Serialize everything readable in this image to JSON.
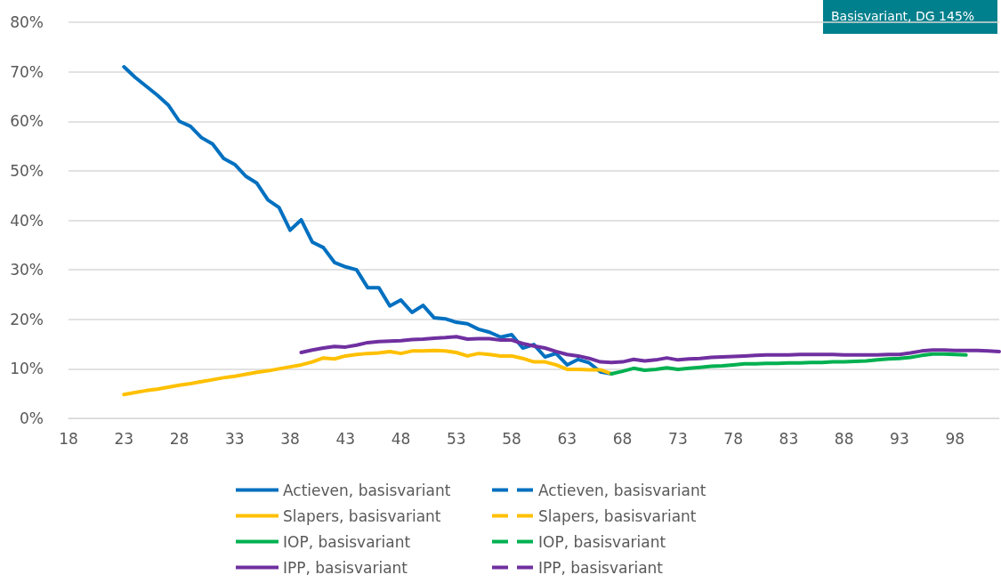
{
  "chart_data": {
    "type": "line",
    "annotations": [
      "Basisvariant, DG 145%"
    ],
    "xlim": [
      18,
      102
    ],
    "xticks": [
      18,
      23,
      28,
      33,
      38,
      43,
      48,
      53,
      58,
      63,
      68,
      73,
      78,
      83,
      88,
      93,
      98
    ],
    "ylim": [
      0,
      80
    ],
    "yticks": [
      {
        "value": 0,
        "label": "0%"
      },
      {
        "value": 10,
        "label": "10%"
      },
      {
        "value": 20,
        "label": "20%"
      },
      {
        "value": 30,
        "label": "30%"
      },
      {
        "value": 40,
        "label": "40%"
      },
      {
        "value": 50,
        "label": "50%"
      },
      {
        "value": 60,
        "label": "60%"
      },
      {
        "value": 70,
        "label": "70%"
      },
      {
        "value": 80,
        "label": "80%"
      }
    ],
    "grid": "y",
    "legend": "bottom",
    "marker": "none",
    "line_style": "solid",
    "series": [
      {
        "name": "Actieven, basisvariant",
        "color": "#0070c0",
        "x": [
          23,
          24,
          25,
          26,
          27,
          28,
          29,
          30,
          31,
          32,
          33,
          34,
          35,
          36,
          37,
          38,
          39,
          40,
          41,
          42,
          43,
          44,
          45,
          46,
          47,
          48,
          49,
          50,
          51,
          52,
          53,
          54,
          55,
          56,
          57,
          58,
          59,
          60,
          61,
          62,
          63,
          64,
          65,
          66,
          67
        ],
        "values": [
          71,
          68.9,
          67.1,
          65.3,
          63.3,
          60,
          59,
          56.7,
          55.4,
          52.5,
          51.3,
          48.9,
          47.5,
          44.1,
          42.6,
          38,
          40.1,
          35.6,
          34.5,
          31.5,
          30.6,
          30,
          26.4,
          26.4,
          22.7,
          23.9,
          21.4,
          22.8,
          20.3,
          20.1,
          19.4,
          19.1,
          18,
          17.4,
          16.4,
          16.9,
          14.2,
          14.9,
          12.4,
          13.1,
          10.8,
          11.9,
          11.2,
          9.4,
          9.0
        ]
      },
      {
        "name": "Actieven, basisvariant",
        "color": "#0070c0",
        "line_style": "dashed"
      },
      {
        "name": "Slapers, basisvariant",
        "color": "#ffc000",
        "x": [
          23,
          24,
          25,
          26,
          27,
          28,
          29,
          30,
          31,
          32,
          33,
          34,
          35,
          36,
          37,
          38,
          39,
          40,
          41,
          42,
          43,
          44,
          45,
          46,
          47,
          48,
          49,
          50,
          51,
          52,
          53,
          54,
          55,
          56,
          57,
          58,
          59,
          60,
          61,
          62,
          63,
          64,
          65,
          66,
          67
        ],
        "values": [
          4.8,
          5.2,
          5.6,
          5.9,
          6.3,
          6.7,
          7.0,
          7.4,
          7.8,
          8.2,
          8.5,
          8.9,
          9.3,
          9.6,
          10.0,
          10.4,
          10.8,
          11.4,
          12.2,
          12.0,
          12.6,
          12.9,
          13.1,
          13.2,
          13.5,
          13.1,
          13.6,
          13.6,
          13.7,
          13.6,
          13.3,
          12.6,
          13.1,
          12.9,
          12.6,
          12.6,
          12.1,
          11.4,
          11.4,
          10.8,
          9.9,
          9.9,
          9.8,
          9.8,
          9.0
        ]
      },
      {
        "name": "Slapers, basisvariant",
        "color": "#ffc000",
        "line_style": "dashed"
      },
      {
        "name": "IOP, basisvariant",
        "color": "#00b050",
        "x": [
          67,
          68,
          69,
          70,
          71,
          72,
          73,
          74,
          75,
          76,
          77,
          78,
          79,
          80,
          81,
          82,
          83,
          84,
          85,
          86,
          87,
          88,
          89,
          90,
          91,
          92,
          93,
          94,
          95,
          96,
          97,
          98,
          99
        ],
        "values": [
          9.0,
          9.5,
          10.1,
          9.7,
          9.9,
          10.2,
          9.9,
          10.1,
          10.3,
          10.5,
          10.6,
          10.8,
          11.0,
          11.0,
          11.1,
          11.1,
          11.2,
          11.2,
          11.3,
          11.3,
          11.4,
          11.4,
          11.5,
          11.6,
          11.8,
          12.0,
          12.1,
          12.3,
          12.7,
          13.0,
          13.0,
          12.9,
          12.8
        ]
      },
      {
        "name": "IOP, basisvariant",
        "color": "#00b050",
        "line_style": "dashed"
      },
      {
        "name": "IPP, basisvariant",
        "color": "#7030a0",
        "x": [
          39,
          40,
          41,
          42,
          43,
          44,
          45,
          46,
          47,
          48,
          49,
          50,
          51,
          52,
          53,
          54,
          55,
          56,
          57,
          58,
          59,
          60,
          61,
          62,
          63,
          64,
          65,
          66,
          67,
          68,
          69,
          70,
          71,
          72,
          73,
          74,
          75,
          76,
          77,
          78,
          79,
          80,
          81,
          82,
          83,
          84,
          85,
          86,
          87,
          88,
          89,
          90,
          91,
          92,
          93,
          94,
          95,
          96,
          97,
          98,
          99,
          100,
          101,
          102
        ],
        "values": [
          13.3,
          13.8,
          14.2,
          14.5,
          14.4,
          14.8,
          15.3,
          15.5,
          15.6,
          15.7,
          15.9,
          16.0,
          16.2,
          16.3,
          16.5,
          16.0,
          16.1,
          16.1,
          15.8,
          15.8,
          15.1,
          14.6,
          14.2,
          13.5,
          12.9,
          12.6,
          12.1,
          11.4,
          11.3,
          11.4,
          11.9,
          11.6,
          11.8,
          12.2,
          11.8,
          12.0,
          12.1,
          12.3,
          12.4,
          12.5,
          12.6,
          12.7,
          12.8,
          12.8,
          12.8,
          12.9,
          12.9,
          12.9,
          12.9,
          12.8,
          12.8,
          12.8,
          12.8,
          12.9,
          12.9,
          13.2,
          13.6,
          13.8,
          13.8,
          13.7,
          13.7,
          13.7,
          13.6,
          13.5
        ]
      },
      {
        "name": "IPP, basisvariant",
        "color": "#7030a0",
        "line_style": "dashed"
      }
    ]
  }
}
